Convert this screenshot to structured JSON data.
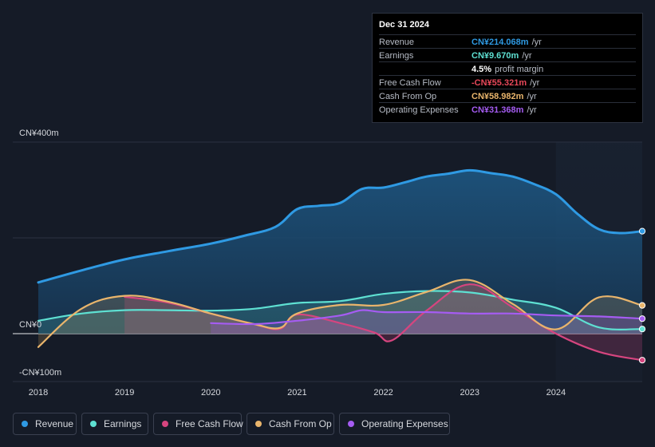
{
  "tooltip": {
    "date": "Dec 31 2024",
    "rows": [
      {
        "label": "Revenue",
        "value": "CN¥214.068m",
        "unit": "/yr",
        "color": "#2f9ae3"
      },
      {
        "label": "Earnings",
        "value": "CN¥9.670m",
        "unit": "/yr",
        "color": "#5ee0d2"
      },
      {
        "label": "",
        "value": "4.5%",
        "unit": "profit margin",
        "color": "#ffffff"
      },
      {
        "label": "Free Cash Flow",
        "value": "-CN¥55.321m",
        "unit": "/yr",
        "color": "#e8485a"
      },
      {
        "label": "Cash From Op",
        "value": "CN¥58.982m",
        "unit": "/yr",
        "color": "#e9b56c"
      },
      {
        "label": "Operating Expenses",
        "value": "CN¥31.368m",
        "unit": "/yr",
        "color": "#a55cf2"
      }
    ]
  },
  "legend": [
    {
      "label": "Revenue",
      "color": "#2f9ae3"
    },
    {
      "label": "Earnings",
      "color": "#5ee0d2"
    },
    {
      "label": "Free Cash Flow",
      "color": "#d6457f"
    },
    {
      "label": "Cash From Op",
      "color": "#e9b56c"
    },
    {
      "label": "Operating Expenses",
      "color": "#a55cf2"
    }
  ],
  "chart_data": {
    "type": "area",
    "title": "",
    "xlabel": "",
    "ylabel": "",
    "x_ticks": [
      "2018",
      "2019",
      "2020",
      "2021",
      "2022",
      "2023",
      "2024"
    ],
    "y_ticks": [
      {
        "value": 400,
        "label": "CN¥400m"
      },
      {
        "value": 0,
        "label": "CN¥0"
      },
      {
        "value": -100,
        "label": "-CN¥100m"
      }
    ],
    "xlim": [
      2018.0,
      2025.0
    ],
    "ylim": [
      -100,
      400
    ],
    "forecast_start": 2024.0,
    "series": [
      {
        "name": "Revenue",
        "color": "#2f9ae3",
        "x": [
          2018.0,
          2018.5,
          2019.0,
          2019.5,
          2020.0,
          2020.4,
          2020.75,
          2021.0,
          2021.25,
          2021.5,
          2021.75,
          2022.0,
          2022.25,
          2022.5,
          2022.75,
          2023.0,
          2023.25,
          2023.5,
          2023.75,
          2024.0,
          2024.25,
          2024.5,
          2024.75,
          2025.0
        ],
        "values": [
          107,
          132,
          155,
          172,
          188,
          205,
          223,
          260,
          267,
          273,
          302,
          305,
          316,
          328,
          334,
          341,
          335,
          328,
          312,
          291,
          250,
          218,
          210,
          214
        ]
      },
      {
        "name": "Earnings",
        "color": "#5ee0d2",
        "x": [
          2018.0,
          2018.5,
          2019.0,
          2019.5,
          2020.0,
          2020.5,
          2021.0,
          2021.5,
          2022.0,
          2022.5,
          2023.0,
          2023.5,
          2024.0,
          2024.5,
          2025.0
        ],
        "values": [
          27,
          42,
          49,
          49,
          48,
          52,
          64,
          68,
          83,
          89,
          86,
          71,
          54,
          13,
          9.67
        ]
      },
      {
        "name": "Free Cash Flow",
        "color": "#d6457f",
        "x": [
          2019.0,
          2019.5,
          2020.0,
          2020.5,
          2020.8,
          2021.0,
          2021.5,
          2021.9,
          2022.1,
          2022.5,
          2023.0,
          2023.5,
          2024.0,
          2024.5,
          2025.0
        ],
        "values": [
          77,
          65,
          42,
          20,
          10,
          40,
          22,
          2,
          -14,
          48,
          103,
          55,
          0,
          -38,
          -55.321
        ]
      },
      {
        "name": "Cash From Op",
        "color": "#e9b56c",
        "x": [
          2018.0,
          2018.5,
          2019.0,
          2019.5,
          2020.0,
          2020.5,
          2020.8,
          2021.0,
          2021.5,
          2022.0,
          2022.5,
          2023.0,
          2023.5,
          2024.0,
          2024.5,
          2025.0
        ],
        "values": [
          -28,
          52,
          79,
          67,
          42,
          20,
          12,
          42,
          60,
          60,
          87,
          112,
          62,
          9,
          76,
          58.982
        ]
      },
      {
        "name": "Operating Expenses",
        "color": "#a55cf2",
        "x": [
          2020.0,
          2020.5,
          2021.0,
          2021.5,
          2021.75,
          2022.0,
          2022.5,
          2023.0,
          2023.5,
          2024.0,
          2024.5,
          2025.0
        ],
        "values": [
          22,
          20,
          27,
          38,
          49,
          45,
          45,
          42,
          42,
          38,
          36,
          31.368
        ]
      }
    ]
  }
}
